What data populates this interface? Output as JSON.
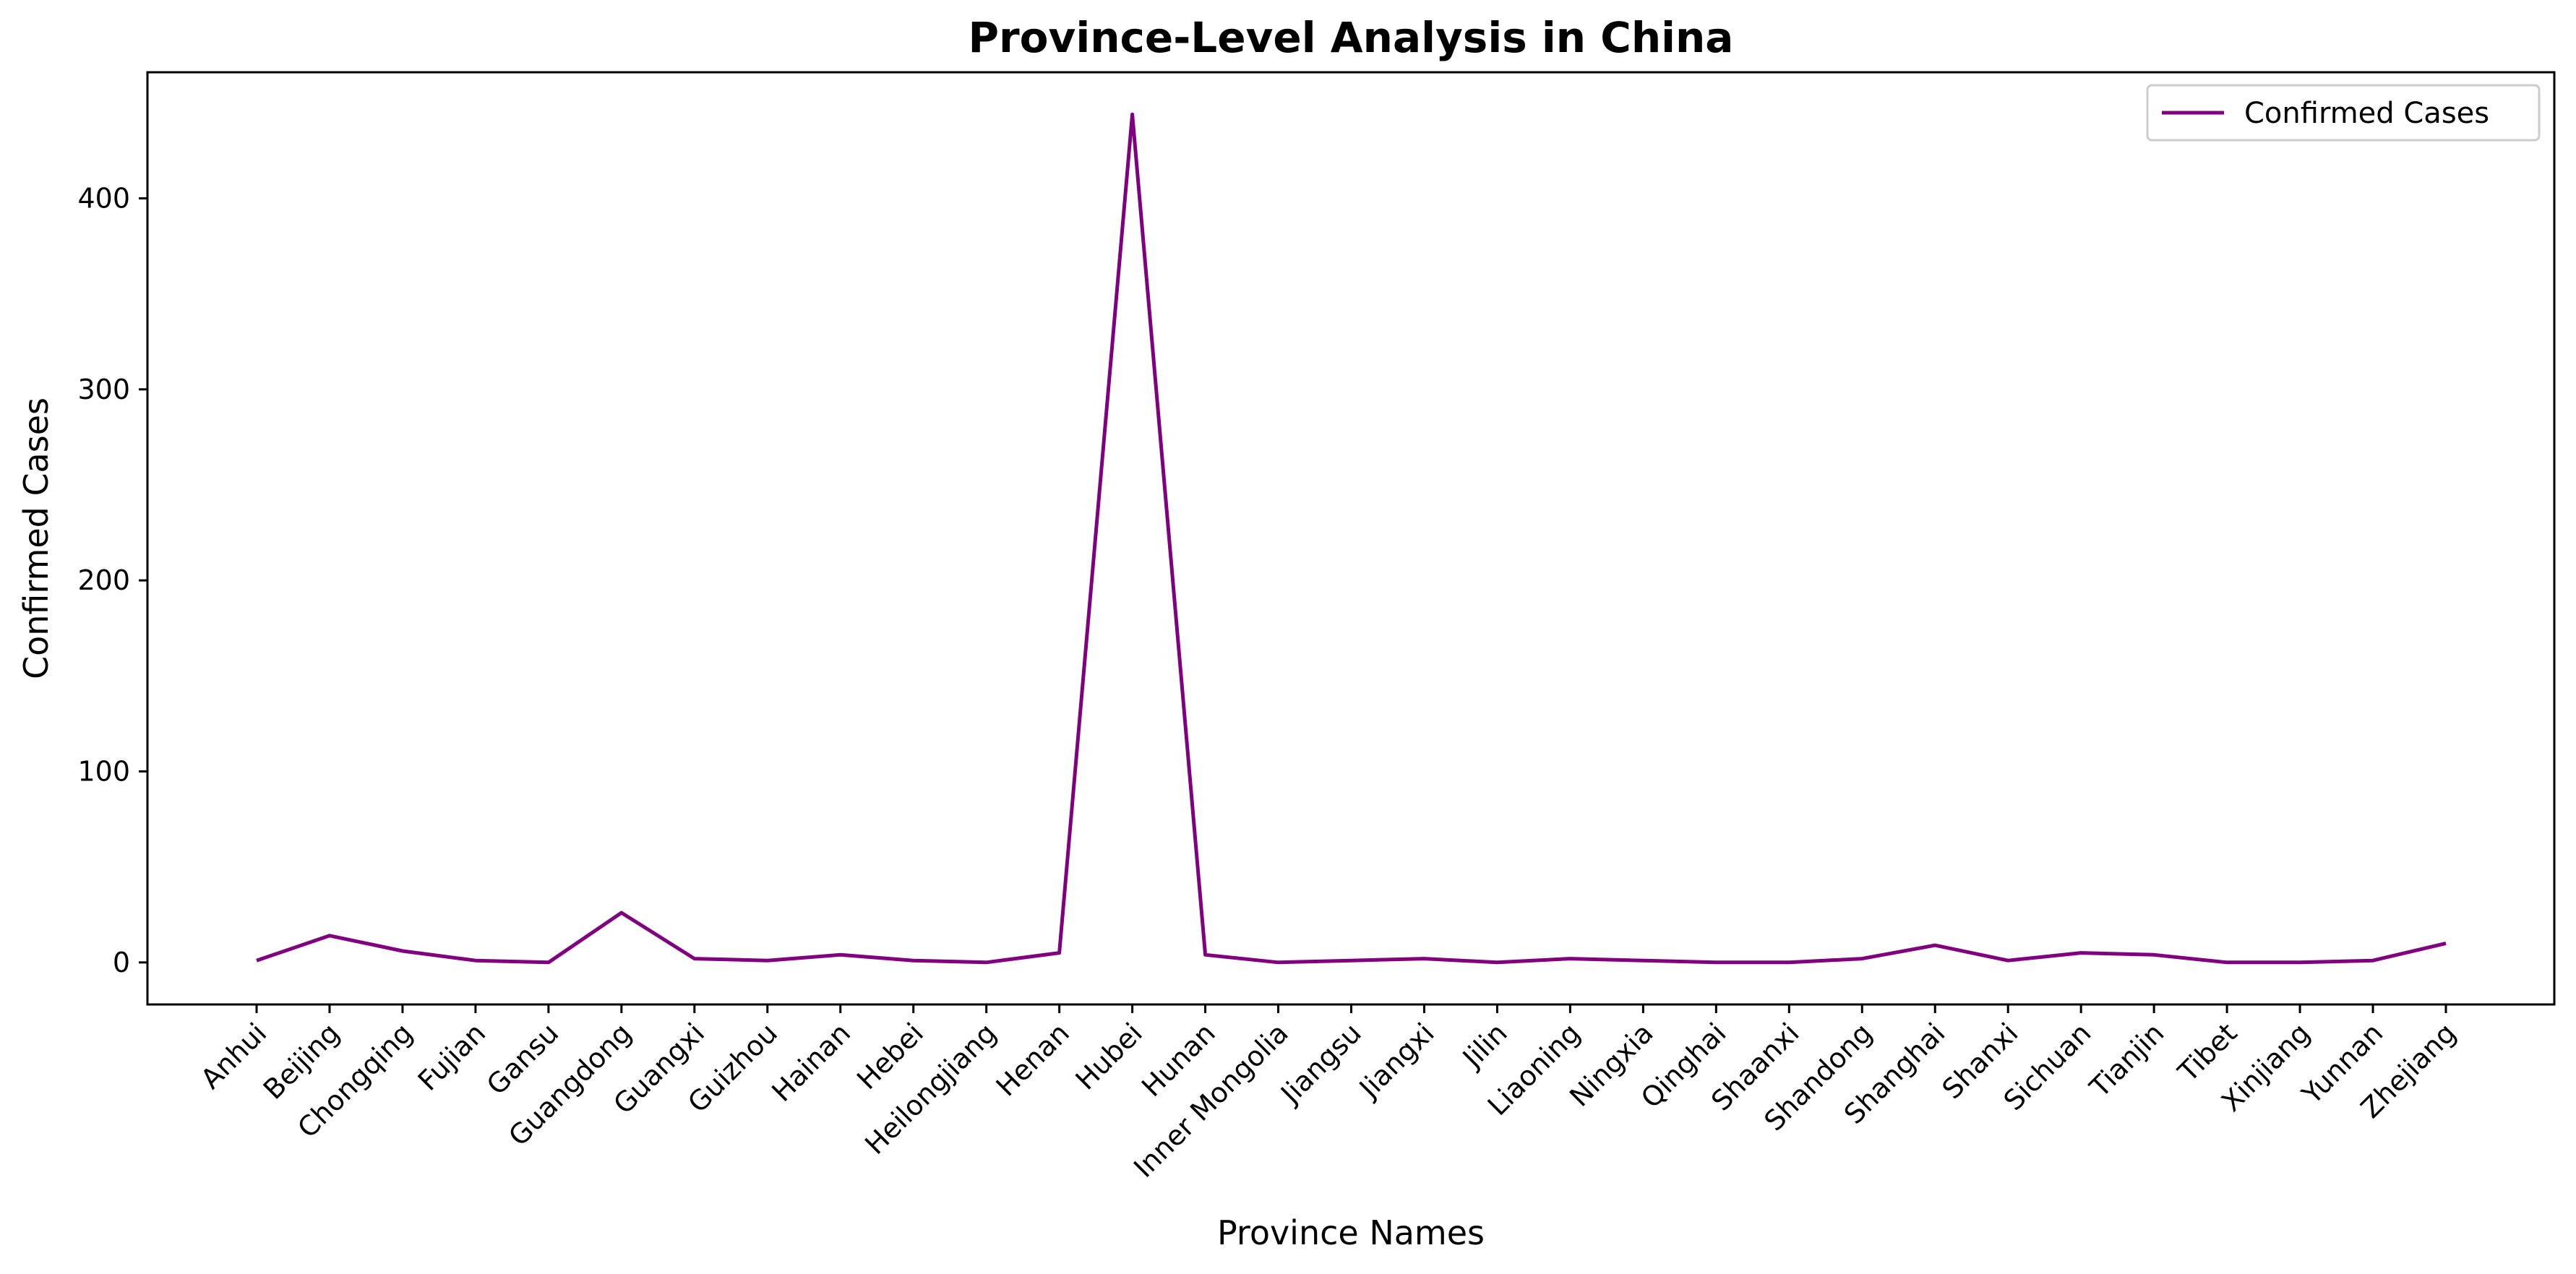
{
  "chart_data": {
    "type": "line",
    "title": "Province-Level Analysis in China",
    "xlabel": "Province Names",
    "ylabel": "Confirmed Cases",
    "categories": [
      "Anhui",
      "Beijing",
      "Chongqing",
      "Fujian",
      "Gansu",
      "Guangdong",
      "Guangxi",
      "Guizhou",
      "Hainan",
      "Hebei",
      "Heilongjiang",
      "Henan",
      "Hubei",
      "Hunan",
      "Inner Mongolia",
      "Jiangsu",
      "Jiangxi",
      "Jilin",
      "Liaoning",
      "Ningxia",
      "Qinghai",
      "Shaanxi",
      "Shandong",
      "Shanghai",
      "Shanxi",
      "Sichuan",
      "Tianjin",
      "Tibet",
      "Xinjiang",
      "Yunnan",
      "Zhejiang"
    ],
    "series": [
      {
        "name": "Confirmed Cases",
        "color": "#800080",
        "values": [
          1,
          14,
          6,
          1,
          0,
          26,
          2,
          1,
          4,
          1,
          0,
          5,
          444,
          4,
          0,
          1,
          2,
          0,
          2,
          1,
          0,
          0,
          2,
          9,
          1,
          5,
          4,
          0,
          0,
          1,
          10
        ]
      }
    ],
    "ylim": [
      -22,
      466
    ],
    "yticks": [
      0,
      100,
      200,
      300,
      400
    ],
    "grid": false,
    "legend": "top-right"
  }
}
